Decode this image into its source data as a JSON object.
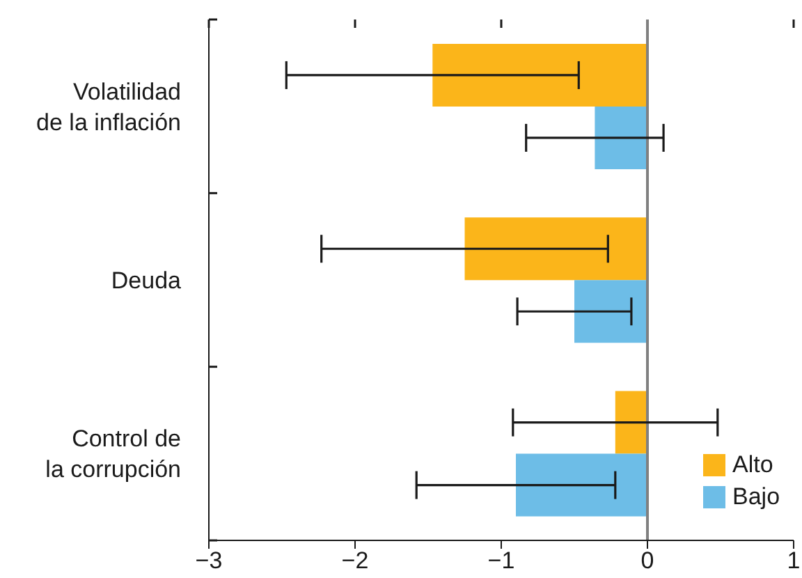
{
  "chart_data": {
    "type": "bar",
    "orientation": "horizontal",
    "categories": [
      "Volatilidad\nde la inflación",
      "Deuda",
      "Control de\nla corrupción"
    ],
    "series": [
      {
        "name": "Alto",
        "color": "#fbb51a",
        "values": [
          -1.47,
          -1.25,
          -0.22
        ],
        "errors": [
          1.0,
          0.98,
          0.7
        ]
      },
      {
        "name": "Bajo",
        "color": "#6dbde7",
        "values": [
          -0.36,
          -0.5,
          -0.9
        ],
        "errors": [
          0.47,
          0.39,
          0.68
        ]
      }
    ],
    "xlim": [
      -3,
      1
    ],
    "xticks": [
      {
        "value": -3,
        "label": "−3"
      },
      {
        "value": -2,
        "label": "−2"
      },
      {
        "value": -1,
        "label": "−1"
      },
      0,
      1
    ],
    "ref_lines": [
      {
        "axis": "x",
        "value": 0,
        "color": "#808080"
      }
    ],
    "legend": "bottom right"
  }
}
